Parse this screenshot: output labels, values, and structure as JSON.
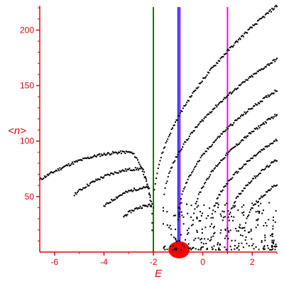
{
  "chart_data": {
    "type": "scatter",
    "xlabel": "E",
    "ylabel": "<n>",
    "xlim": [
      -6.6,
      3.0
    ],
    "ylim": [
      0,
      222
    ],
    "x_ticks": [
      -6,
      -4,
      -2,
      0,
      2
    ],
    "y_ticks": [
      50,
      100,
      150,
      200
    ],
    "colors": {
      "axes": "#e8000b",
      "points": "#000000",
      "blob": "#ff0000",
      "line_green": "#007a00",
      "line_blue": "#2222ff",
      "line_violet": "#9a00c8",
      "line_magenta": "#ff00ff"
    },
    "vertical_lines": [
      {
        "x": -2.0,
        "color": "#007a00"
      },
      {
        "x": -1.0,
        "color": "#2222ff"
      },
      {
        "x": -0.93,
        "color": "#9a00c8"
      },
      {
        "x": 1.0,
        "color": "#ff00ff"
      }
    ],
    "highlight_blob": {
      "x": -0.96,
      "y": 2,
      "color": "#ff0000"
    },
    "series": [
      {
        "x0": -6.6,
        "x1": -2.05,
        "y0": 65,
        "ymax": 90,
        "xpeak": -3.0,
        "points": 118
      },
      {
        "x0": -5.2,
        "x1": -2.05,
        "y0": 52,
        "ymax": 75,
        "xpeak": -2.5,
        "points": 80
      },
      {
        "x0": -4.0,
        "x1": -2.05,
        "y0": 41,
        "ymax": 58,
        "xpeak": -2.2,
        "points": 52
      },
      {
        "x0": -3.2,
        "x1": -2.05,
        "y0": 32,
        "ymax": 42,
        "xpeak": -2.1,
        "points": 32
      },
      {
        "x0": -2.0,
        "x1": 3.0,
        "y0": 40,
        "y1": 222,
        "points": 130
      },
      {
        "x0": -1.6,
        "x1": 3.0,
        "y0": 40,
        "y1": 174,
        "points": 118
      },
      {
        "x0": -1.0,
        "x1": 3.0,
        "y0": 28,
        "y1": 146,
        "points": 102
      },
      {
        "x0": -0.4,
        "x1": 3.0,
        "y0": 25,
        "y1": 124,
        "points": 88
      },
      {
        "x0": 0.3,
        "x1": 3.0,
        "y0": 22,
        "y1": 101,
        "points": 70
      },
      {
        "x0": 1.0,
        "x1": 3.0,
        "y0": 22,
        "y1": 83,
        "points": 52
      },
      {
        "x0": 1.7,
        "x1": 3.0,
        "y0": 20,
        "y1": 61,
        "points": 34
      }
    ],
    "cloud": {
      "x0": -1.6,
      "x1": 3.0,
      "y0": 2,
      "y1": 45,
      "points": 260
    }
  }
}
